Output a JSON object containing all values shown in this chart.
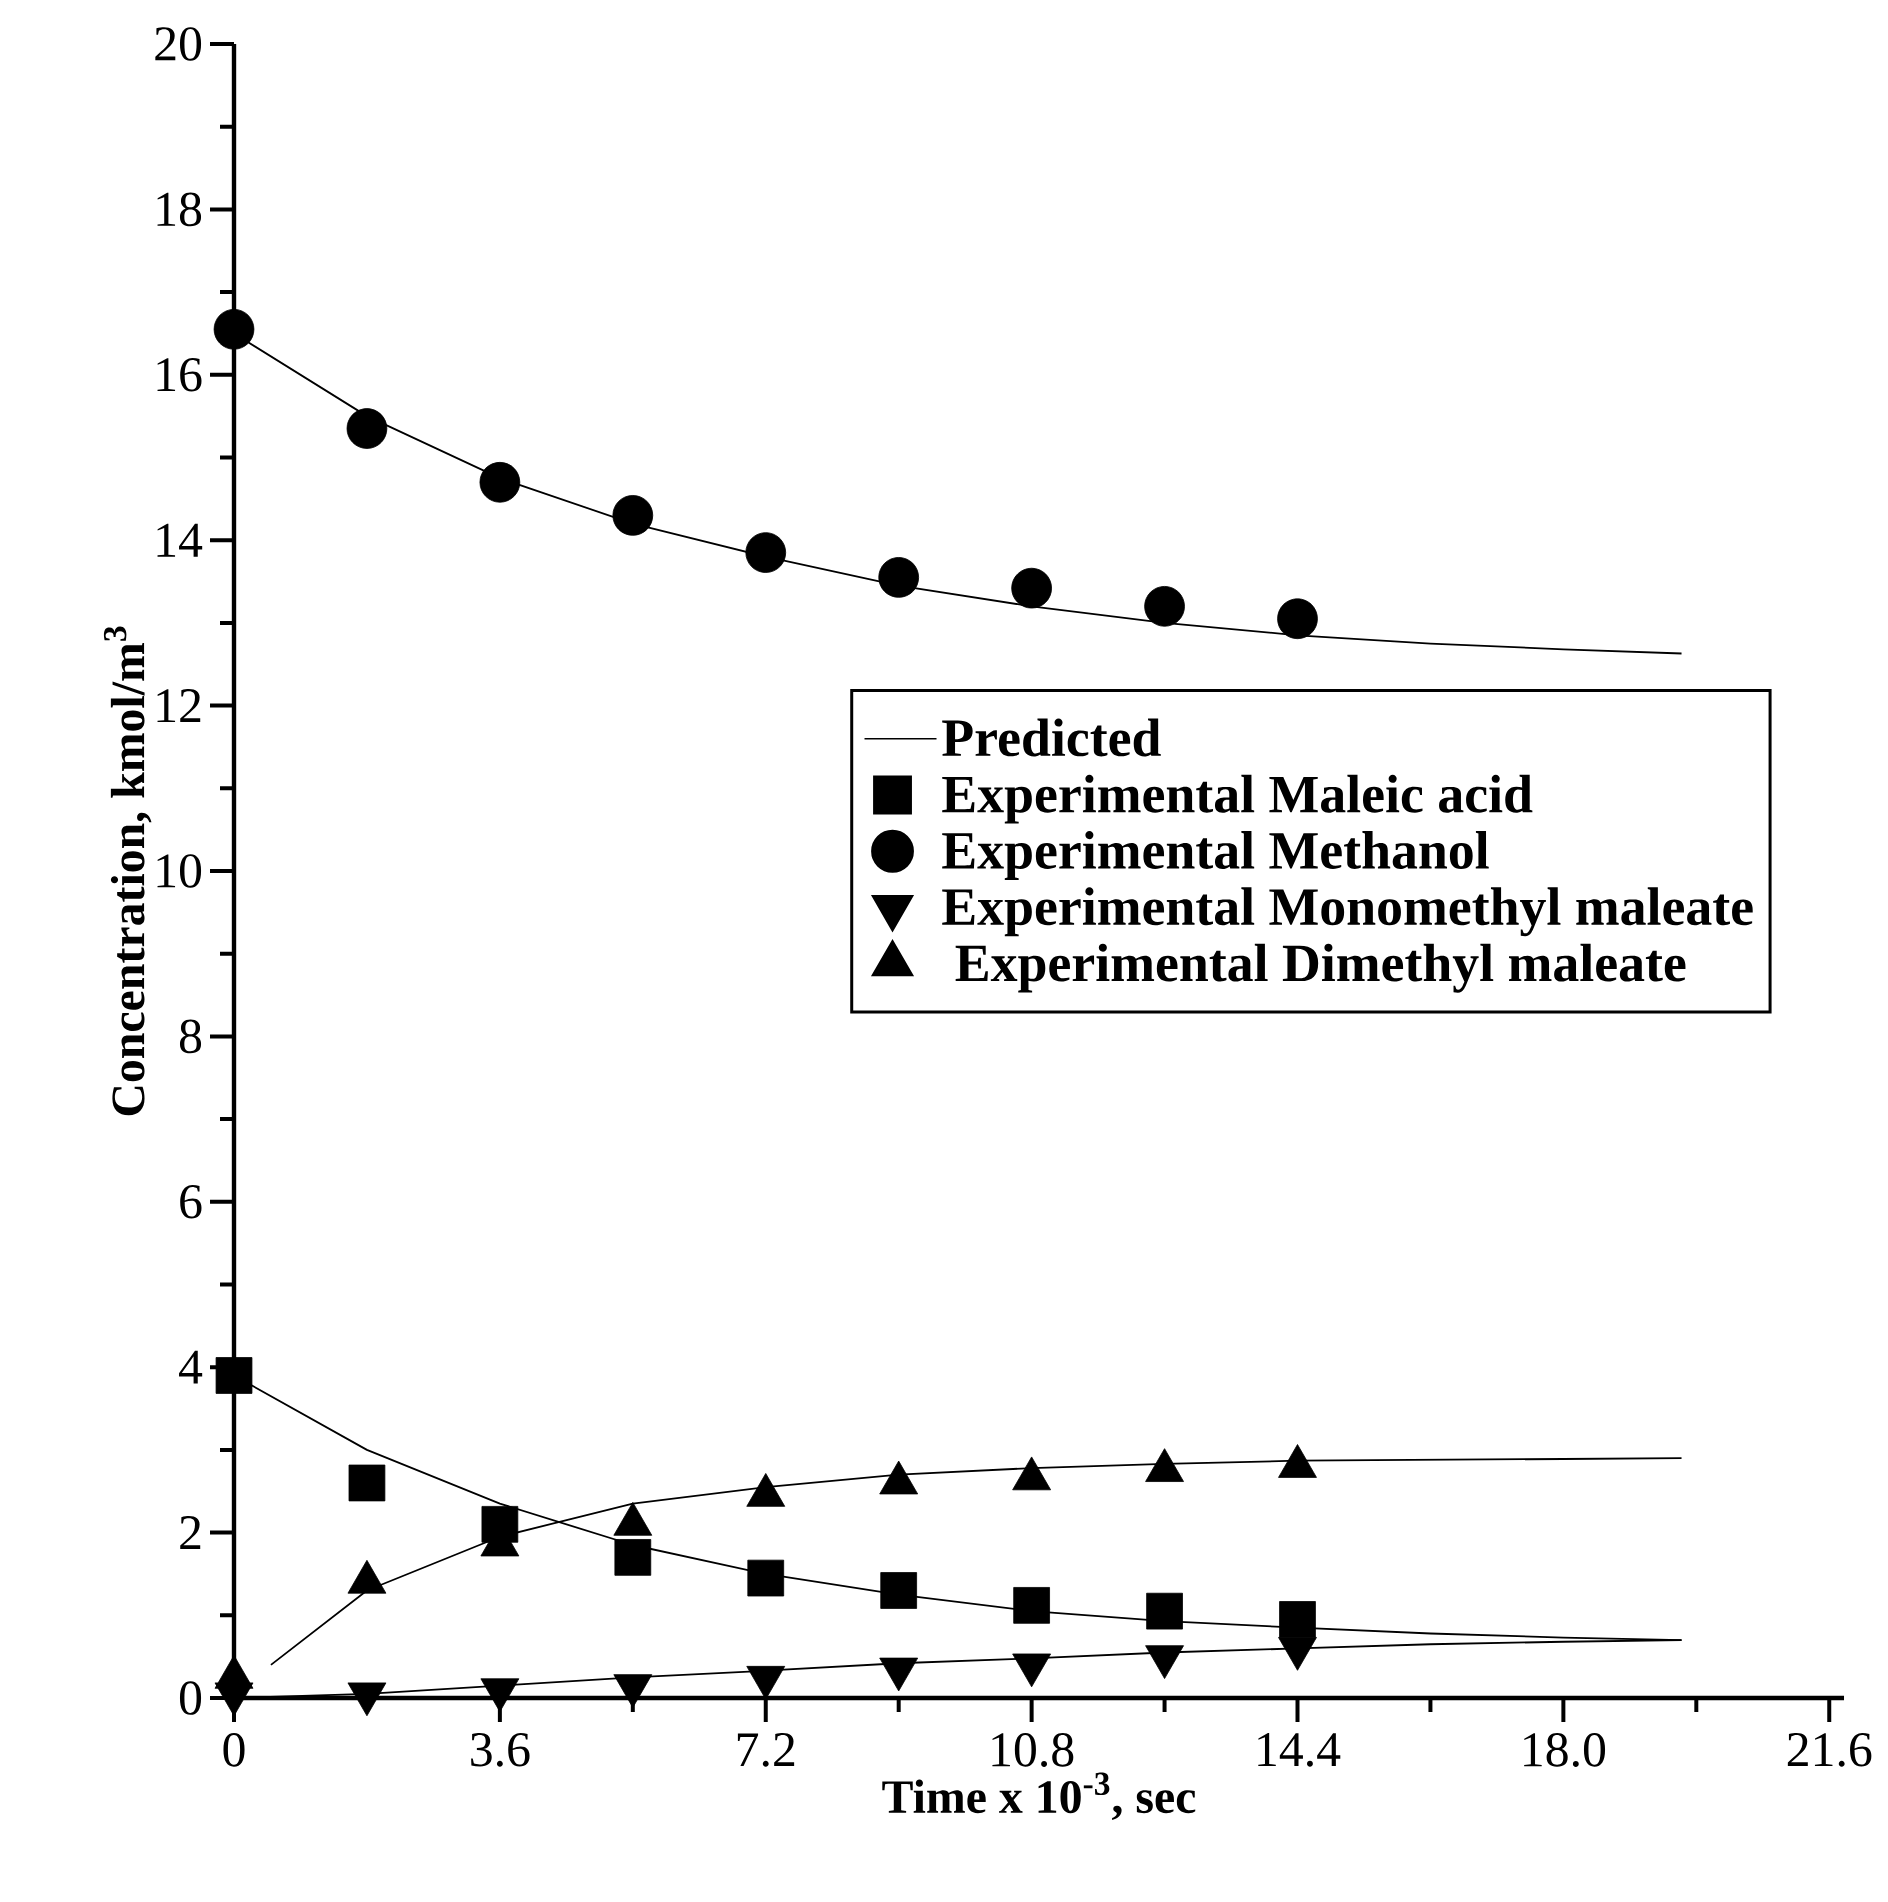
{
  "chart_data": {
    "type": "scatter",
    "xlabel": "Time x 10$^{-3}$, sec",
    "ylabel": "Concentration, kmol/m$^{3}$",
    "xlim": [
      0,
      21.8
    ],
    "ylim": [
      0,
      20
    ],
    "xticks": [
      0,
      3.6,
      7.2,
      10.8,
      14.4,
      {
        "value": 18,
        "label": "18.0"
      },
      21.6
    ],
    "yticks": [
      0,
      2,
      4,
      6,
      8,
      10,
      12,
      14,
      16,
      18,
      20
    ],
    "legend": "right",
    "series": [
      {
        "type": "line",
        "name": "Predicted",
        "color": "#000000",
        "marker": "none",
        "x": [
          0,
          1.8,
          3.6,
          5.4,
          7.2,
          9,
          10.8,
          12.6,
          14.4,
          16.2,
          18,
          19.6
        ],
        "values": [
          16.5,
          15.5,
          14.75,
          14.2,
          13.8,
          13.45,
          13.2,
          13.0,
          12.85,
          12.75,
          12.68,
          12.63
        ]
      },
      {
        "type": "line",
        "color": "#000000",
        "marker": "none",
        "x": [
          0,
          1.8,
          3.6,
          5.4,
          7.2,
          9,
          10.8,
          12.6,
          14.4,
          16.2,
          18,
          19.6
        ],
        "values": [
          3.9,
          3.0,
          2.35,
          1.85,
          1.5,
          1.25,
          1.05,
          0.93,
          0.85,
          0.78,
          0.73,
          0.7
        ]
      },
      {
        "type": "line",
        "color": "#000000",
        "marker": "none",
        "x": [
          0.5,
          1.8,
          3.6,
          5.4,
          7.2,
          9,
          10.8,
          12.6,
          14.4,
          16.2,
          18,
          19.6
        ],
        "values": [
          0.4,
          1.3,
          1.95,
          2.35,
          2.55,
          2.7,
          2.78,
          2.83,
          2.87,
          2.88,
          2.89,
          2.9
        ]
      },
      {
        "type": "line",
        "color": "#000000",
        "marker": "none",
        "x": [
          0,
          1.8,
          3.6,
          5.4,
          7.2,
          9,
          10.8,
          12.6,
          14.4,
          16.2,
          18,
          19.6
        ],
        "values": [
          0,
          0.05,
          0.15,
          0.25,
          0.33,
          0.42,
          0.48,
          0.55,
          0.6,
          0.65,
          0.68,
          0.7
        ]
      },
      {
        "name": "Experimental Maleic acid",
        "color": "#000000",
        "marker": "square",
        "x": [
          0,
          1.8,
          3.6,
          5.4,
          7.2,
          9,
          10.8,
          12.6,
          14.4
        ],
        "values": [
          3.9,
          2.6,
          2.1,
          1.7,
          1.45,
          1.3,
          1.12,
          1.05,
          0.95
        ]
      },
      {
        "name": "Experimental Methanol",
        "color": "#000000",
        "marker": "circle",
        "x": [
          0,
          1.8,
          3.6,
          5.4,
          7.2,
          9,
          10.8,
          12.6,
          14.4
        ],
        "values": [
          16.55,
          15.35,
          14.7,
          14.3,
          13.85,
          13.55,
          13.42,
          13.2,
          13.05
        ]
      },
      {
        "name": "Experimental Monomethyl maleate",
        "color": "#000000",
        "marker": "triangle-down",
        "x": [
          0,
          1.8,
          3.6,
          5.4,
          7.2,
          9,
          10.8,
          12.6,
          14.4
        ],
        "values": [
          0.05,
          0.05,
          0.1,
          0.15,
          0.25,
          0.35,
          0.4,
          0.5,
          0.6
        ]
      },
      {
        "name": " Experimental Dimethyl maleate",
        "color": "#000000",
        "marker": "triangle",
        "x": [
          0,
          1.8,
          3.6,
          5.4,
          7.2,
          9,
          10.8,
          12.6,
          14.4
        ],
        "values": [
          0.25,
          1.4,
          1.85,
          2.1,
          2.45,
          2.6,
          2.65,
          2.75,
          2.8
        ]
      }
    ]
  }
}
